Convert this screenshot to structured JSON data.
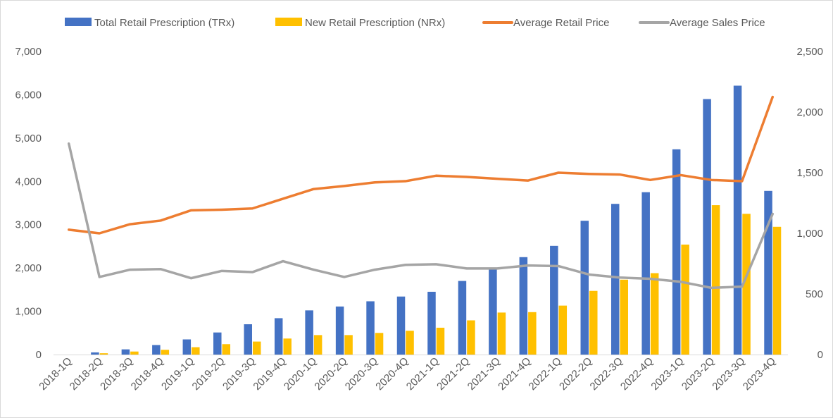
{
  "chart_data": {
    "type": "bar",
    "categories": [
      "2018-1Q",
      "2018-2Q",
      "2018-3Q",
      "2018-4Q",
      "2019-1Q",
      "2019-2Q",
      "2019-3Q",
      "2019-4Q",
      "2020-1Q",
      "2020-2Q",
      "2020-3Q",
      "2020-4Q",
      "2021-1Q",
      "2021-2Q",
      "2021-3Q",
      "2021-4Q",
      "2022-1Q",
      "2022-2Q",
      "2022-3Q",
      "2022-4Q",
      "2023-1Q",
      "2023-2Q",
      "2023-3Q",
      "2023-4Q"
    ],
    "series": [
      {
        "name": "Total Retail Prescription (TRx)",
        "type": "bar",
        "axis": "left",
        "color": "#4472C4",
        "values": [
          0,
          50,
          120,
          220,
          350,
          510,
          700,
          840,
          1020,
          1110,
          1230,
          1340,
          1450,
          1700,
          1990,
          2250,
          2510,
          3090,
          3480,
          3750,
          4740,
          5900,
          6210,
          3780
        ]
      },
      {
        "name": "New Retail Prescription (NRx)",
        "type": "bar",
        "axis": "left",
        "color": "#FFC000",
        "values": [
          0,
          30,
          70,
          110,
          170,
          240,
          300,
          370,
          450,
          450,
          500,
          550,
          620,
          790,
          970,
          980,
          1130,
          1470,
          1730,
          1880,
          2540,
          3450,
          3250,
          2950
        ]
      },
      {
        "name": "Average Retail Price",
        "type": "line",
        "axis": "right",
        "color": "#ED7D31",
        "values": [
          1030,
          1000,
          1075,
          1105,
          1190,
          1195,
          1205,
          1285,
          1365,
          1390,
          1420,
          1430,
          1475,
          1465,
          1450,
          1435,
          1500,
          1490,
          1485,
          1440,
          1480,
          1440,
          1430,
          2125
        ]
      },
      {
        "name": "Average Sales Price",
        "type": "line",
        "axis": "right",
        "color": "#A5A5A5",
        "values": [
          1740,
          640,
          700,
          705,
          630,
          690,
          680,
          770,
          700,
          640,
          700,
          740,
          745,
          710,
          710,
          735,
          730,
          660,
          635,
          625,
          600,
          550,
          560,
          1160
        ]
      }
    ],
    "y_left": {
      "min": 0,
      "max": 7000,
      "step": 1000,
      "ticks": [
        "0",
        "1,000",
        "2,000",
        "3,000",
        "4,000",
        "5,000",
        "6,000",
        "7,000"
      ]
    },
    "y_right": {
      "min": 0,
      "max": 2500,
      "step": 500,
      "ticks": [
        "0",
        "500",
        "1,000",
        "1,500",
        "2,000",
        "2,500"
      ]
    },
    "grid": false,
    "legend_position": "top",
    "title": "",
    "xlabel": "",
    "ylabel": ""
  }
}
